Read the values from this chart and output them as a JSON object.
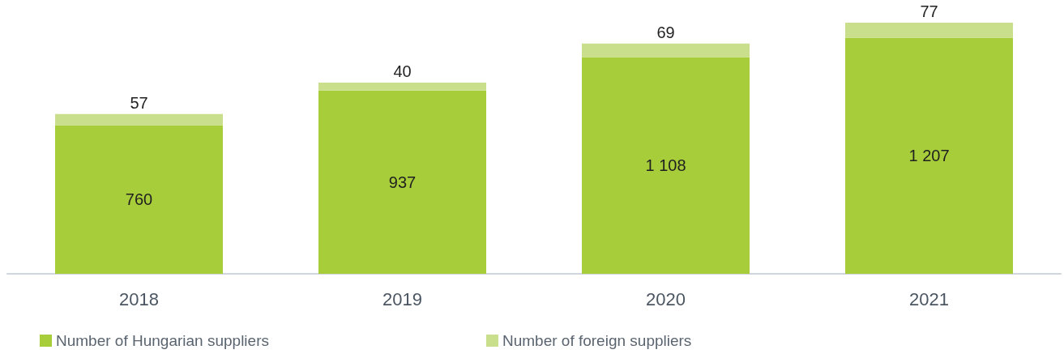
{
  "chart_data": {
    "type": "bar",
    "stacked": true,
    "categories": [
      "2018",
      "2019",
      "2020",
      "2021"
    ],
    "series": [
      {
        "name": "Number of Hungarian suppliers",
        "color": "#a8cd3b",
        "values": [
          760,
          937,
          1108,
          1207
        ],
        "value_labels": [
          "760",
          "937",
          "1 108",
          "1 207"
        ]
      },
      {
        "name": "Number of foreign suppliers",
        "color": "#cadf8c",
        "values": [
          57,
          40,
          69,
          77
        ],
        "value_labels": [
          "57",
          "40",
          "69",
          "77"
        ]
      }
    ],
    "legend": "bottom left",
    "tick_labels": "x"
  }
}
